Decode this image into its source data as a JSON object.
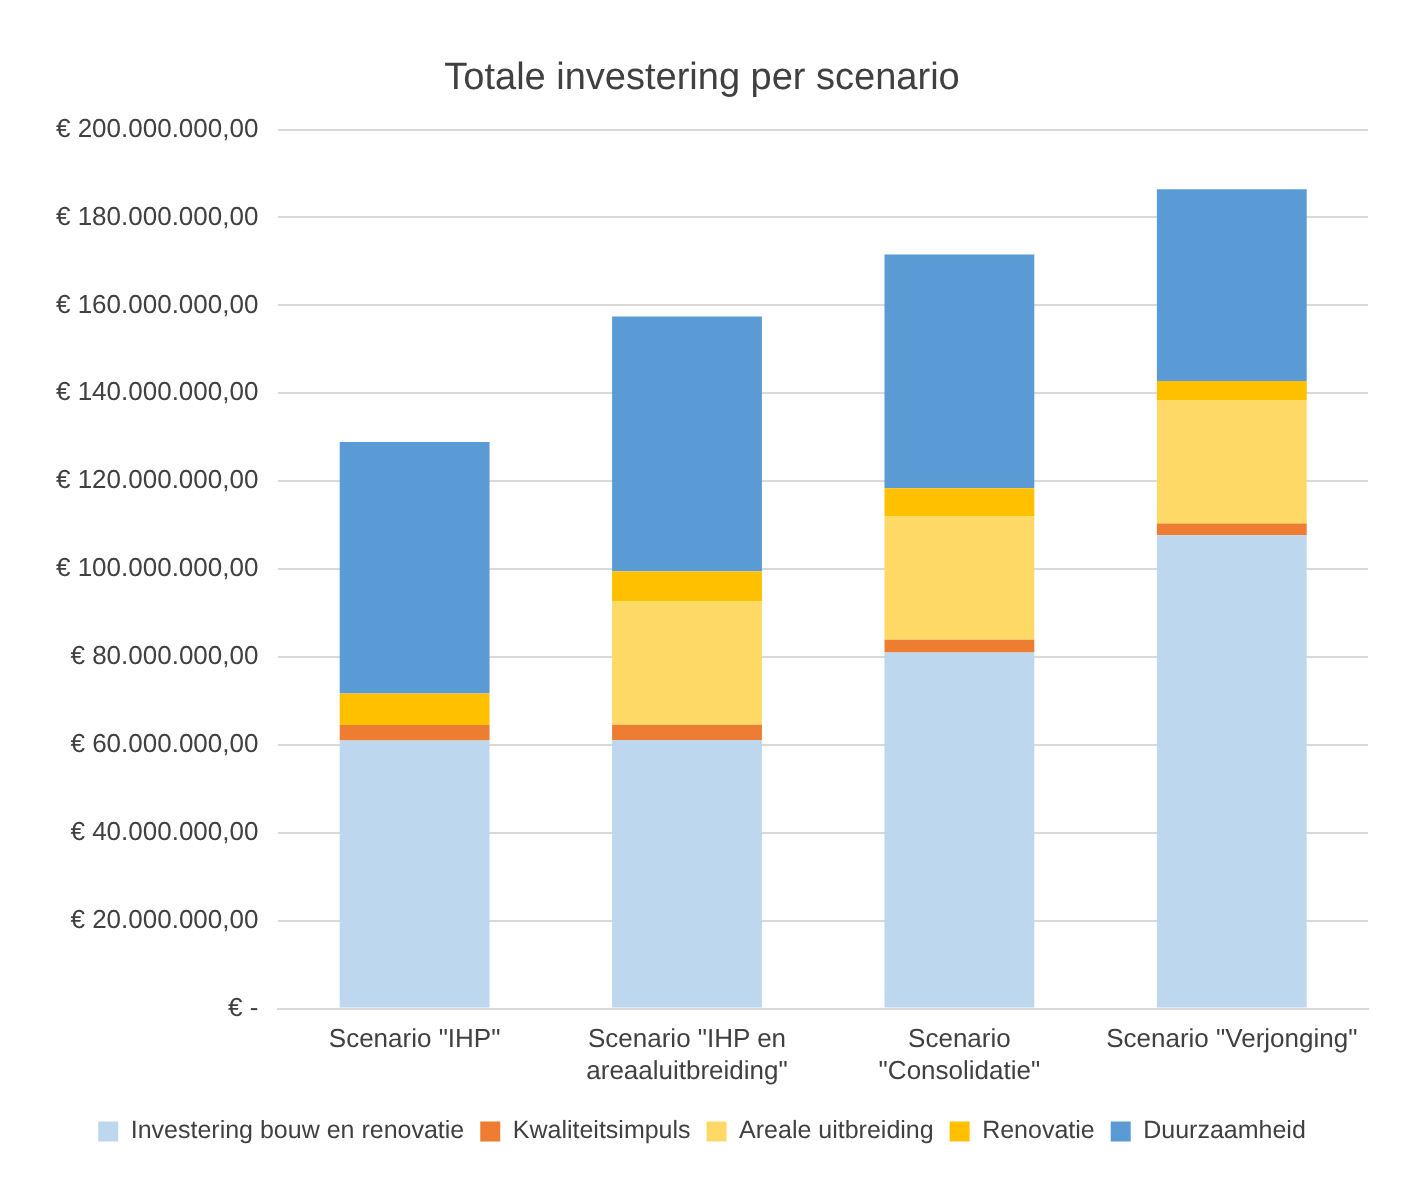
{
  "chart_data": {
    "type": "bar",
    "title": "Totale investering per scenario",
    "categories": [
      "Scenario \"IHP\"",
      "Scenario \"IHP en areaaluitbreiding\"",
      "Scenario \"Consolidatie\"",
      "Scenario \"Verjonging\""
    ],
    "series": [
      {
        "name": "Investering bouw en renovatie",
        "color": "#bdd7ee",
        "values": [
          61000000,
          61100000,
          81000000,
          107700000
        ]
      },
      {
        "name": "Kwaliteitsimpuls",
        "color": "#ed7d31",
        "values": [
          3500000,
          3500000,
          2900000,
          2700000
        ]
      },
      {
        "name": "Areale uitbreiding",
        "color": "#ffd966",
        "values": [
          0,
          28000000,
          28200000,
          28100000
        ]
      },
      {
        "name": "Renovatie",
        "color": "#ffc000",
        "values": [
          7200000,
          6900000,
          6300000,
          4300000
        ]
      },
      {
        "name": "Duurzaamheid",
        "color": "#5b9bd5",
        "values": [
          57200000,
          58000000,
          53200000,
          43600000
        ]
      }
    ],
    "stacked": true,
    "ylim": [
      0,
      200000000
    ],
    "yticks": [
      {
        "value": 0,
        "label": "€ -"
      },
      {
        "value": 20000000,
        "label": "€ 20.000.000,00"
      },
      {
        "value": 40000000,
        "label": "€ 40.000.000,00"
      },
      {
        "value": 60000000,
        "label": "€ 60.000.000,00"
      },
      {
        "value": 80000000,
        "label": "€ 80.000.000,00"
      },
      {
        "value": 100000000,
        "label": "€ 100.000.000,00"
      },
      {
        "value": 120000000,
        "label": "€ 120.000.000,00"
      },
      {
        "value": 140000000,
        "label": "€ 140.000.000,00"
      },
      {
        "value": 160000000,
        "label": "€ 160.000.000,00"
      },
      {
        "value": 180000000,
        "label": "€ 180.000.000,00"
      },
      {
        "value": 200000000,
        "label": "€ 200.000.000,00"
      }
    ],
    "grid": "y",
    "legend": "bottom"
  }
}
